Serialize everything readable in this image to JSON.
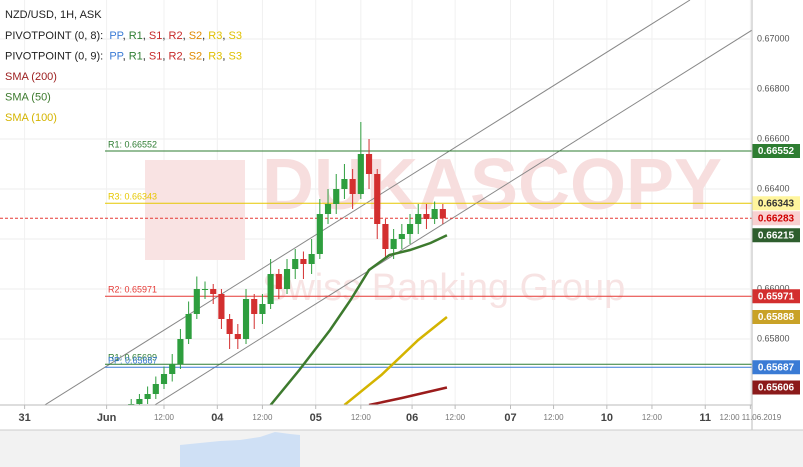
{
  "chart_data": {
    "type": "candlestick",
    "title": "NZD/USD, 1H, ASK",
    "watermark": "DUKASCOPY",
    "watermark_sub": "Swiss Banking Group",
    "pivot_legends": [
      {
        "label": "PIVOTPOINT (0, 8):",
        "items": [
          "PP",
          "R1",
          "S1",
          "R2",
          "S2",
          "R3",
          "S3"
        ]
      },
      {
        "label": "PIVOTPOINT (0, 9):",
        "items": [
          "PP",
          "R1",
          "S1",
          "R2",
          "S2",
          "R3",
          "S3"
        ]
      }
    ],
    "pivot_separator": ", ",
    "pivot_colors": [
      "#3a7bd5",
      "#2e7d32",
      "#c62828",
      "#c62828",
      "#e08a00",
      "#e0c000",
      "#e0c000"
    ],
    "xlim": [
      0,
      183.4
    ],
    "ylim": [
      0.65536,
      0.67156
    ],
    "yticks": [
      {
        "value": 0.67,
        "label": "0.67000"
      },
      {
        "value": 0.668,
        "label": "0.66800"
      },
      {
        "value": 0.666,
        "label": "0.66600"
      },
      {
        "value": 0.664,
        "label": "0.66400"
      },
      {
        "value": 0.662,
        "label": "0.66200"
      },
      {
        "value": 0.66,
        "label": "0.66000"
      },
      {
        "value": 0.658,
        "label": "0.65800"
      }
    ],
    "xticks": [
      {
        "value": 6,
        "label": "31"
      },
      {
        "value": 26,
        "label": "Jun"
      },
      {
        "value": 40,
        "label": "12:00"
      },
      {
        "value": 53,
        "label": "04"
      },
      {
        "value": 64,
        "label": "12:00"
      },
      {
        "value": 77,
        "label": "05"
      },
      {
        "value": 88,
        "label": "12:00"
      },
      {
        "value": 100.5,
        "label": "06"
      },
      {
        "value": 111,
        "label": "12:00"
      },
      {
        "value": 124.5,
        "label": "07"
      },
      {
        "value": 135,
        "label": "12:00"
      },
      {
        "value": 148,
        "label": "10"
      },
      {
        "value": 159,
        "label": "12:00"
      },
      {
        "value": 172,
        "label": "11"
      },
      {
        "value": 183,
        "label": "12:00 11.06.2019"
      }
    ],
    "grid": true,
    "up_color": "#2e9e3e",
    "down_color": "#d32f2f",
    "candles": {
      "x": [
        32,
        34,
        36,
        38,
        40,
        42,
        44,
        46,
        48,
        50,
        52,
        54,
        56,
        58,
        60,
        62,
        64,
        66,
        68,
        70,
        72,
        74,
        76,
        78,
        80,
        82,
        84,
        86,
        88,
        90,
        92,
        94,
        96,
        98,
        100,
        102,
        104,
        106,
        108
      ],
      "open": [
        0.6552,
        0.6554,
        0.6556,
        0.6558,
        0.6562,
        0.6566,
        0.657,
        0.658,
        0.659,
        0.66,
        0.66,
        0.6598,
        0.6588,
        0.6582,
        0.658,
        0.6596,
        0.659,
        0.6594,
        0.6606,
        0.66,
        0.6608,
        0.6612,
        0.661,
        0.6614,
        0.663,
        0.6634,
        0.664,
        0.6644,
        0.6638,
        0.6654,
        0.6646,
        0.6626,
        0.6616,
        0.662,
        0.6622,
        0.6626,
        0.663,
        0.6628,
        0.6632
      ],
      "high": [
        0.6556,
        0.6558,
        0.6561,
        0.6565,
        0.6569,
        0.6574,
        0.6584,
        0.6595,
        0.6605,
        0.6603,
        0.6602,
        0.66,
        0.659,
        0.6586,
        0.66,
        0.6598,
        0.6598,
        0.6612,
        0.6608,
        0.6612,
        0.6616,
        0.6615,
        0.662,
        0.6636,
        0.664,
        0.6646,
        0.665,
        0.6648,
        0.66668,
        0.666,
        0.6648,
        0.6628,
        0.6624,
        0.6626,
        0.663,
        0.6634,
        0.6634,
        0.6635,
        0.6634
      ],
      "low": [
        0.655,
        0.6552,
        0.6554,
        0.6556,
        0.656,
        0.6563,
        0.6568,
        0.6578,
        0.6588,
        0.6596,
        0.6594,
        0.6584,
        0.6576,
        0.6576,
        0.6578,
        0.6584,
        0.6586,
        0.6592,
        0.6596,
        0.6598,
        0.6604,
        0.6604,
        0.6606,
        0.6612,
        0.6626,
        0.663,
        0.6636,
        0.6632,
        0.6636,
        0.664,
        0.662,
        0.6612,
        0.6612,
        0.6616,
        0.6618,
        0.6622,
        0.6624,
        0.6626,
        0.6626
      ],
      "close": [
        0.6554,
        0.6556,
        0.6558,
        0.6562,
        0.6566,
        0.657,
        0.658,
        0.659,
        0.66,
        0.66,
        0.6598,
        0.6588,
        0.6582,
        0.658,
        0.6596,
        0.659,
        0.6594,
        0.6606,
        0.66,
        0.6608,
        0.6612,
        0.661,
        0.6614,
        0.663,
        0.6634,
        0.664,
        0.6644,
        0.6638,
        0.6654,
        0.6646,
        0.6626,
        0.6616,
        0.662,
        0.6622,
        0.6626,
        0.663,
        0.6628,
        0.6632,
        0.66283
      ]
    },
    "series": [
      {
        "name": "SMA (200)",
        "color": "#9b1c1c",
        "x": [
          90,
          98,
          109
        ],
        "values": [
          0.65536,
          0.65564,
          0.65606
        ]
      },
      {
        "name": "SMA (50)",
        "color": "#3d7a2e",
        "x": [
          66,
          73,
          80.5,
          85.5,
          90,
          95,
          100,
          105,
          109
        ],
        "values": [
          0.65536,
          0.65676,
          0.65836,
          0.65956,
          0.66076,
          0.66136,
          0.66156,
          0.66184,
          0.66215
        ]
      },
      {
        "name": "SMA (100)",
        "color": "#d4b400",
        "x": [
          84,
          93,
          102,
          109
        ],
        "values": [
          0.65536,
          0.65656,
          0.65796,
          0.65888
        ]
      }
    ],
    "levels": [
      {
        "value": 0.66552,
        "label": "R1: 0.66552",
        "color": "#2e7d32",
        "line": true,
        "tag_bg": "#2e7d32",
        "tag_fg": "#ffffff"
      },
      {
        "value": 0.66343,
        "label": "R3: 0.66343",
        "color": "#e6c700",
        "line": true,
        "tag_bg": "#fff59d",
        "tag_fg": "#333333"
      },
      {
        "value": 0.66283,
        "color": "#e53935",
        "line": true,
        "dash": true,
        "tag_bg": "#f8d0d0",
        "tag_fg": "#d00000"
      },
      {
        "value": 0.66215,
        "color": "#2e5e2e",
        "line": false,
        "tag_bg": "#2e5e2e",
        "tag_fg": "#ffffff"
      },
      {
        "value": 0.65971,
        "label": "R2: 0.65971",
        "color": "#e53935",
        "line": true,
        "tag_bg": "#d32f2f",
        "tag_fg": "#ffffff"
      },
      {
        "value": 0.65888,
        "color": "#c9a227",
        "line": false,
        "tag_bg": "#c9a227",
        "tag_fg": "#ffffff"
      },
      {
        "value": 0.65699,
        "label": "R1: 0.65699",
        "color": "#2e7d32",
        "line": true
      },
      {
        "value": 0.65687,
        "label": "PP: 0.65687",
        "color": "#3a7bd5",
        "line": true,
        "tag_bg": "#3a7bd5",
        "tag_fg": "#ffffff"
      },
      {
        "value": 0.65606,
        "color": "#8b1a1a",
        "line": false,
        "tag_bg": "#8b1a1a",
        "tag_fg": "#ffffff"
      }
    ]
  }
}
